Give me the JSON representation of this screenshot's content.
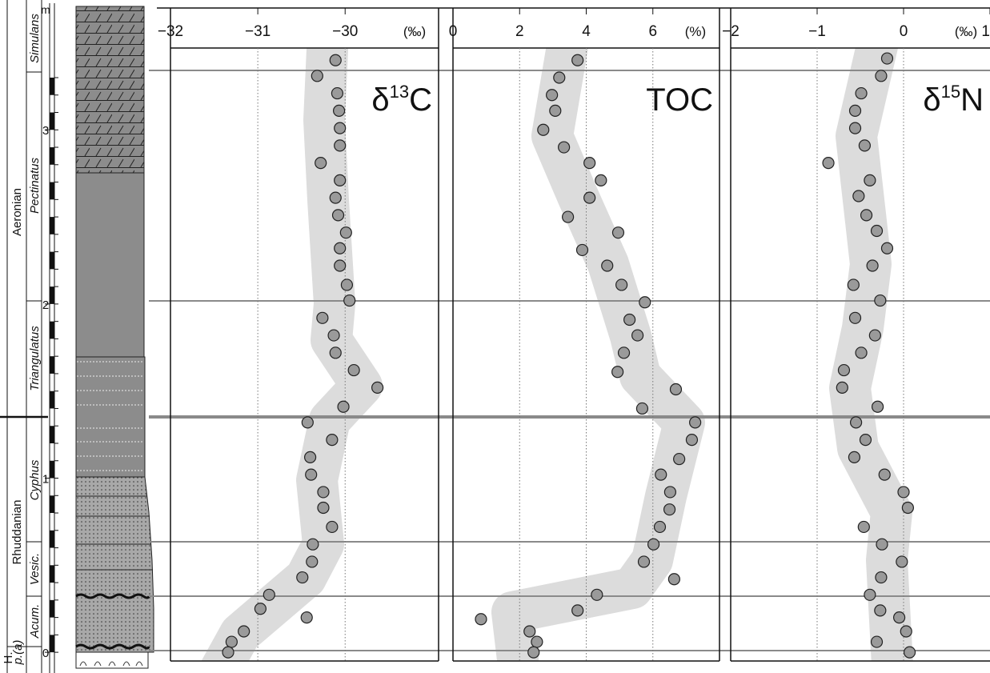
{
  "stratigraphy": {
    "depth_unit": "m",
    "depth_ticks": [
      0,
      1,
      2,
      3
    ],
    "stages": [
      "Aeronian",
      "Rhuddanian",
      "H."
    ],
    "zones": [
      "Simulans",
      "Pectinatus",
      "Triangulatus",
      "Cyphus",
      "Vesic.",
      "Acum.",
      "p.(a)"
    ]
  },
  "chart_data": [
    {
      "type": "scatter",
      "title": [
        "δ",
        "13",
        "C"
      ],
      "xlabel": "(‰)",
      "color": "#9a9a9a",
      "grid": true,
      "xlim": [
        -32,
        -28.93
      ],
      "xticks": [
        {
          "value": -32,
          "label": "−32"
        },
        {
          "value": -31,
          "label": "−31"
        },
        {
          "value": -30,
          "label": "−30"
        }
      ],
      "ylim": [
        -0.05,
        3.47
      ],
      "x": [
        -30.11,
        -30.32,
        -30.09,
        -30.07,
        -30.06,
        -30.06,
        -30.28,
        -30.06,
        -30.11,
        -30.08,
        -29.99,
        -30.06,
        -30.06,
        -29.98,
        -29.95,
        -30.26,
        -30.13,
        -30.11,
        -29.9,
        -29.63,
        -30.02,
        -30.43,
        -30.15,
        -30.4,
        -30.39,
        -30.25,
        -30.25,
        -30.15,
        -30.37,
        -30.38,
        -30.49,
        -30.87,
        -30.97,
        -30.44,
        -31.16,
        -31.3,
        -31.34
      ],
      "y": [
        3.4,
        3.31,
        3.21,
        3.11,
        3.01,
        2.91,
        2.81,
        2.71,
        2.61,
        2.51,
        2.41,
        2.32,
        2.22,
        2.11,
        2.02,
        1.92,
        1.82,
        1.72,
        1.62,
        1.52,
        1.41,
        1.32,
        1.22,
        1.12,
        1.02,
        0.92,
        0.83,
        0.72,
        0.62,
        0.52,
        0.43,
        0.33,
        0.25,
        0.2,
        0.12,
        0.06,
        0.0
      ]
    },
    {
      "type": "scatter",
      "title": [
        "TOC"
      ],
      "xlabel": "(%)",
      "color": "#9a9a9a",
      "grid": true,
      "xlim": [
        0,
        8
      ],
      "xticks": [
        0,
        2,
        4,
        6
      ],
      "ylim": [
        -0.05,
        3.47
      ],
      "x": [
        3.74,
        3.19,
        2.97,
        3.07,
        2.71,
        3.33,
        4.1,
        4.44,
        4.1,
        3.45,
        4.96,
        3.88,
        4.63,
        5.06,
        5.76,
        5.3,
        5.54,
        5.13,
        4.94,
        6.69,
        5.68,
        7.27,
        7.17,
        6.79,
        6.24,
        6.52,
        6.5,
        6.21,
        6.02,
        5.73,
        6.64,
        4.32,
        3.74,
        0.84,
        2.3,
        2.52,
        2.42
      ],
      "y": [
        3.4,
        3.3,
        3.2,
        3.11,
        3.0,
        2.9,
        2.81,
        2.71,
        2.61,
        2.5,
        2.41,
        2.31,
        2.22,
        2.11,
        2.01,
        1.91,
        1.82,
        1.72,
        1.61,
        1.51,
        1.4,
        1.32,
        1.22,
        1.11,
        1.02,
        0.92,
        0.82,
        0.72,
        0.62,
        0.52,
        0.42,
        0.33,
        0.24,
        0.19,
        0.12,
        0.06,
        0.0
      ]
    },
    {
      "type": "scatter",
      "title": [
        "δ",
        "15",
        "N"
      ],
      "xlabel": "(‰)",
      "color": "#9a9a9a",
      "grid": true,
      "xlim": [
        -2,
        1
      ],
      "xticks": [
        {
          "value": -2,
          "label": "−2"
        },
        {
          "value": -1,
          "label": "−1"
        },
        0,
        1
      ],
      "ylim": [
        -0.05,
        3.47
      ],
      "x": [
        -0.19,
        -0.26,
        -0.49,
        -0.56,
        -0.56,
        -0.45,
        -0.87,
        -0.39,
        -0.52,
        -0.43,
        -0.31,
        -0.19,
        -0.36,
        -0.58,
        -0.27,
        -0.56,
        -0.33,
        -0.49,
        -0.69,
        -0.71,
        -0.3,
        -0.55,
        -0.44,
        -0.57,
        -0.22,
        0.0,
        0.05,
        -0.46,
        -0.25,
        -0.02,
        -0.26,
        -0.39,
        -0.27,
        -0.05,
        0.03,
        -0.31,
        0.07
      ],
      "y": [
        3.41,
        3.31,
        3.21,
        3.11,
        3.01,
        2.91,
        2.81,
        2.71,
        2.62,
        2.51,
        2.42,
        2.32,
        2.22,
        2.11,
        2.02,
        1.92,
        1.82,
        1.72,
        1.62,
        1.52,
        1.41,
        1.32,
        1.22,
        1.12,
        1.02,
        0.92,
        0.83,
        0.72,
        0.62,
        0.52,
        0.43,
        0.33,
        0.24,
        0.2,
        0.12,
        0.06,
        0.0
      ]
    }
  ]
}
